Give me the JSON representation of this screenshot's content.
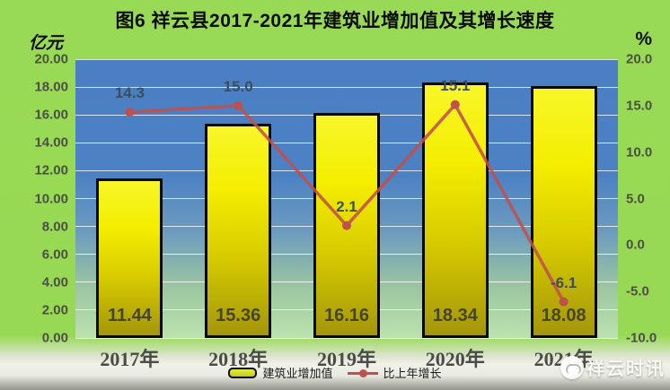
{
  "title": "图6 祥云县2017-2021年建筑业增加值及其增长速度",
  "left_axis": {
    "unit": "亿元",
    "ticks": [
      "20.00",
      "18.00",
      "16.00",
      "14.00",
      "12.00",
      "10.00",
      "8.00",
      "6.00",
      "4.00",
      "2.00",
      "0.00"
    ]
  },
  "right_axis": {
    "unit": "%",
    "ticks": [
      "20.0",
      "15.0",
      "10.0",
      "5.0",
      "0.0",
      "-5.0",
      "-10.0"
    ]
  },
  "legend": {
    "bar_label": "建筑业增加值",
    "line_label": "比上年增长"
  },
  "watermark": {
    "text": "祥云时讯"
  },
  "colors": {
    "background_green": "#98da55",
    "plot_top_blue": "#4a80c3",
    "plot_bottom_green": "#bce2ae",
    "bar_yellow": "#f4ee00",
    "bar_dark_yellow": "#a3960a",
    "bar_border": "#0a0a0a",
    "line_red": "#c0504d",
    "line_label_color": "#3e4c5c"
  },
  "chart_data": {
    "type": "bar",
    "subtype": "combo-bar-line",
    "title": "图6 祥云县2017-2021年建筑业增加值及其增长速度",
    "categories": [
      "2017年",
      "2018年",
      "2019年",
      "2020年",
      "2021年"
    ],
    "series": [
      {
        "name": "建筑业增加值",
        "type": "bar",
        "axis": "left",
        "unit": "亿元",
        "values": [
          11.44,
          15.36,
          16.16,
          18.34,
          18.08
        ],
        "labels": [
          "11.44",
          "15.36",
          "16.16",
          "18.34",
          "18.08"
        ]
      },
      {
        "name": "比上年增长",
        "type": "line",
        "axis": "right",
        "unit": "%",
        "values": [
          14.3,
          15.0,
          2.1,
          15.1,
          -6.1
        ],
        "labels": [
          "14.3",
          "15.0",
          "2.1",
          "15.1",
          "-6.1"
        ]
      }
    ],
    "left_axis": {
      "label": "亿元",
      "min": 0,
      "max": 20,
      "step": 2
    },
    "right_axis": {
      "label": "%",
      "min": -10,
      "max": 20,
      "step": 5
    },
    "grid": true,
    "legend_position": "bottom"
  }
}
